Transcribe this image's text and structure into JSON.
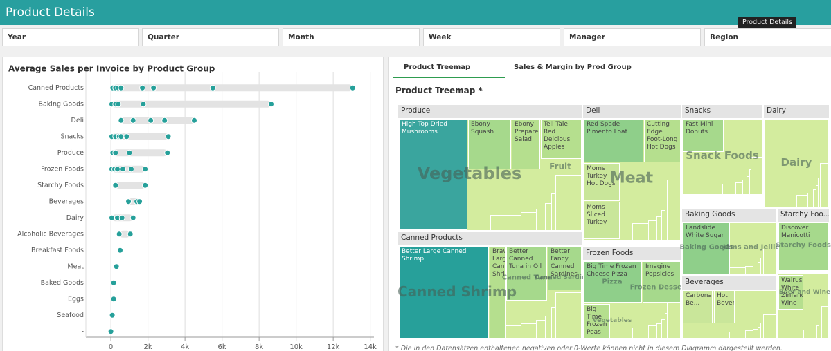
{
  "header": {
    "title": "Product Details",
    "tooltip": "Product Details"
  },
  "filters": [
    "Year",
    "Quarter",
    "Month",
    "Week",
    "Manager",
    "Region"
  ],
  "chart_data": {
    "type": "dot",
    "title": "Average Sales per Invoice by Product Group",
    "categories": [
      "Canned Products",
      "Baking Goods",
      "Deli",
      "Snacks",
      "Produce",
      "Frozen Foods",
      "Starchy Foods",
      "Beverages",
      "Dairy",
      "Alcoholic Beverages",
      "Breakfast Foods",
      "Meat",
      "Baked Goods",
      "Eggs",
      "Seafood",
      "-"
    ],
    "values": [
      [
        100,
        250,
        400,
        550,
        1700,
        2300,
        5500,
        13050
      ],
      [
        50,
        250,
        400,
        1750,
        8650
      ],
      [
        550,
        1200,
        2150,
        2900,
        4500
      ],
      [
        50,
        250,
        450,
        550,
        850,
        3100
      ],
      [
        100,
        250,
        1000,
        3050
      ],
      [
        50,
        200,
        350,
        650,
        1100,
        1850
      ],
      [
        250,
        1850
      ],
      [
        950,
        1400,
        1550
      ],
      [
        50,
        350,
        600,
        1200
      ],
      [
        450,
        1050
      ],
      [
        500
      ],
      [
        300
      ],
      [
        150
      ],
      [
        150
      ],
      [
        75
      ],
      [
        0
      ]
    ],
    "color": "#26a09a",
    "range_color": "#e3e3e3",
    "xlim": [
      -1350,
      14200
    ],
    "xticks": [
      0,
      {
        "value": 2000,
        "label": "2k"
      },
      {
        "value": 4000,
        "label": "4k"
      },
      {
        "value": 6000,
        "label": "6k"
      },
      {
        "value": 8000,
        "label": "8k"
      },
      {
        "value": 10000,
        "label": "10k"
      },
      {
        "value": 12000,
        "label": "12k"
      },
      {
        "value": 14000,
        "label": "14k"
      }
    ],
    "grid": true
  },
  "tabs": [
    "Product Treemap",
    "Sales & Margin by Prod Group"
  ],
  "treemap": {
    "title": "Product Treemap *",
    "groups": [
      {
        "name": "Produce",
        "tiles": [
          "High Top Dried Mushrooms",
          "Ebony Squash",
          "Ebony Prepared Salad",
          "Tell Tale Red Delcious Apples"
        ],
        "labels": [
          "Vegetables",
          "Fruit"
        ]
      },
      {
        "name": "Deli",
        "tiles": [
          "Red Spade Pimento Loaf",
          "Cutting Edge Foot-Long Hot Dogs",
          "Moms Turkey Hot Dogs",
          "Moms Sliced Turkey"
        ],
        "labels": [
          "Meat"
        ]
      },
      {
        "name": "Snacks",
        "tiles": [
          "Fast Mini Donuts"
        ],
        "labels": [
          "Snack Foods"
        ]
      },
      {
        "name": "Dairy",
        "tiles": [],
        "labels": [
          "Dairy"
        ]
      },
      {
        "name": "Canned Products",
        "tiles": [
          "Better Large Canned Shrimp",
          "Bravo Large Canned Shrimp",
          "Better Canned Tuna in Oil",
          "Better Fancy Canned Sardines"
        ],
        "labels": [
          "Canned Shrimp",
          "Canned Tuna",
          "Canned Sardines"
        ]
      },
      {
        "name": "Frozen Foods",
        "tiles": [
          "Big Time Frozen Cheese Pizza",
          "Imagine Popsicles",
          "Big Time Frozen Peas"
        ],
        "labels": [
          "Pizza",
          "Frozen Desserts",
          "Vegetables"
        ]
      },
      {
        "name": "Baking Goods",
        "tiles": [
          "Landslide White Sugar"
        ],
        "labels": [
          "Baking Goods",
          "Jams and Jellies"
        ]
      },
      {
        "name": "Starchy Foo...",
        "tiles": [
          "Discover Manicotti"
        ],
        "labels": [
          "Starchy Foods"
        ]
      },
      {
        "name": "Beverages",
        "tiles": [
          "Carbonated Be...",
          "Hot Bevera..."
        ],
        "labels": []
      },
      {
        "tiles": [
          "Walrus White Zinfandel Wine"
        ],
        "labels": [
          "Beer and Wine"
        ]
      }
    ],
    "footnote": "* Die in den Datensätzen enthaltenen negativen oder 0-Werte können nicht in diesem Diagramm dargestellt werden."
  }
}
